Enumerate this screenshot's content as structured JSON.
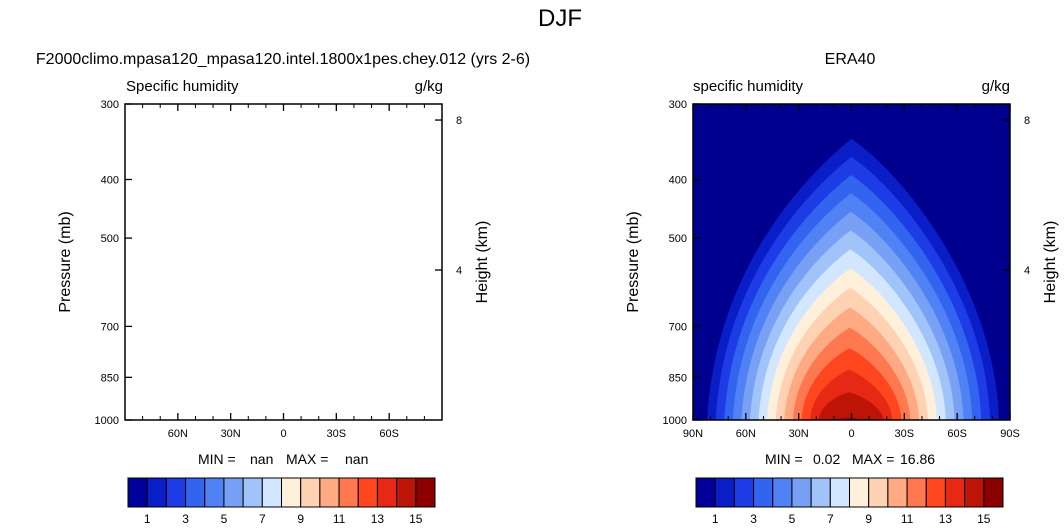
{
  "page_title": "DJF",
  "chart_data": [
    {
      "type": "heatmap",
      "title": "F2000climo.mpasa120_mpasa120.intel.1800x1pes.chey.012 (yrs 2-6)",
      "left_label": "Specific humidity",
      "right_label": "g/kg",
      "ylabel": "Pressure (mb)",
      "y2label": "Height (km)",
      "y_ticks": [
        "300",
        "400",
        "500",
        "700",
        "850",
        "1000"
      ],
      "y_tick_values": [
        300,
        400,
        500,
        700,
        850,
        1000
      ],
      "y2_ticks": [
        "8",
        "4"
      ],
      "y2_tick_values_km": [
        8,
        4
      ],
      "x_ticks": [
        "60N",
        "30N",
        "0",
        "30S",
        "60S"
      ],
      "x_tick_values": [
        60,
        30,
        0,
        -30,
        -60
      ],
      "xlim": [
        90,
        -90
      ],
      "ylim": [
        1000,
        300
      ],
      "min_label": "MIN =",
      "min_value": "nan",
      "max_label": "MAX =",
      "max_value": "nan",
      "colorbar_labels": [
        "1",
        "3",
        "5",
        "7",
        "9",
        "11",
        "13",
        "15"
      ],
      "has_data": false
    },
    {
      "type": "heatmap",
      "title": "ERA40",
      "left_label": "specific humidity",
      "right_label": "g/kg",
      "ylabel": "Pressure (mb)",
      "y2label": "Height (km)",
      "y_ticks": [
        "300",
        "400",
        "500",
        "700",
        "850",
        "1000"
      ],
      "y_tick_values": [
        300,
        400,
        500,
        700,
        850,
        1000
      ],
      "y2_ticks": [
        "8",
        "4"
      ],
      "y2_tick_values_km": [
        8,
        4
      ],
      "x_ticks": [
        "90N",
        "60N",
        "30N",
        "0",
        "30S",
        "60S",
        "90S"
      ],
      "x_tick_values": [
        90,
        60,
        30,
        0,
        -30,
        -60,
        -90
      ],
      "xlim": [
        90,
        -90
      ],
      "ylim": [
        1000,
        300
      ],
      "min_label": "MIN =",
      "min_value": "0.02",
      "max_label": "MAX =",
      "max_value": "16.86",
      "colorbar_labels": [
        "1",
        "3",
        "5",
        "7",
        "9",
        "11",
        "13",
        "15"
      ],
      "contour_levels": [
        1,
        2,
        3,
        4,
        5,
        6,
        7,
        8,
        9,
        10,
        11,
        12,
        13,
        14,
        15
      ],
      "has_data": true
    }
  ],
  "colors": {
    "background_level": "#00008f",
    "palette": [
      "#00009a",
      "#0a1ec8",
      "#1e3ce6",
      "#3264f0",
      "#5082f5",
      "#78a0f5",
      "#a0c3fa",
      "#d2e6ff",
      "#fff0dc",
      "#ffd2b4",
      "#ffaa82",
      "#ff7850",
      "#ff461e",
      "#e62814",
      "#be1408",
      "#8c0000"
    ]
  }
}
